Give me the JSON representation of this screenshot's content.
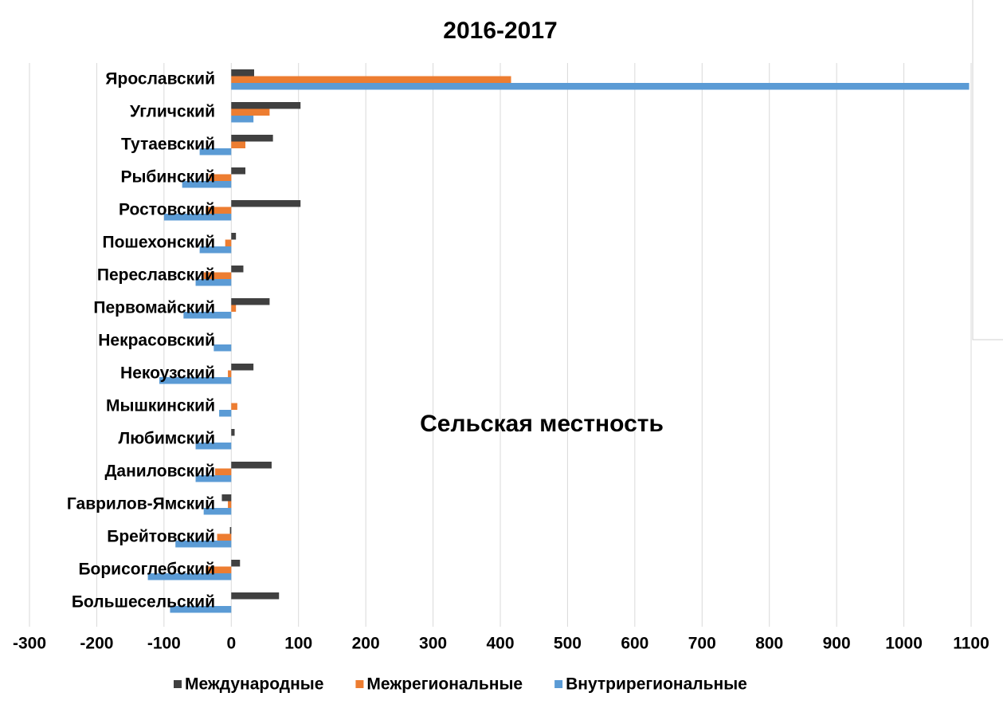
{
  "chart_data": {
    "type": "barh",
    "title": "2016-2017",
    "annotation": "Сельская местность",
    "categories": [
      "Ярославский",
      "Угличский",
      "Тутаевский",
      "Рыбинский",
      "Ростовский",
      "Пошехонский",
      "Переславский",
      "Первомайский",
      "Некрасовский",
      "Некоузский",
      "Мышкинский",
      "Любимский",
      "Даниловский",
      "Гаврилов-Ямский",
      "Брейтовский",
      "Борисоглебский",
      "Большесельский"
    ],
    "series": [
      {
        "name": "Международные",
        "color": "#404040",
        "values": [
          34,
          103,
          62,
          21,
          103,
          7,
          18,
          57,
          0,
          33,
          0,
          5,
          60,
          -14,
          -2,
          13,
          71
        ]
      },
      {
        "name": "Межрегиональные",
        "color": "#ed7d31",
        "values": [
          416,
          57,
          21,
          -33,
          -38,
          -9,
          -41,
          7,
          0,
          -5,
          9,
          0,
          -24,
          -5,
          -21,
          -38,
          0
        ]
      },
      {
        "name": "Внутрирегиональные",
        "color": "#5b9bd5",
        "values": [
          1097,
          33,
          -47,
          -73,
          -100,
          -47,
          -53,
          -71,
          -26,
          -107,
          -18,
          -53,
          -53,
          -41,
          -83,
          -124,
          -91
        ]
      }
    ],
    "xlim": [
      -300,
      1100
    ],
    "xticks": [
      -300,
      -200,
      -100,
      0,
      100,
      200,
      300,
      400,
      500,
      600,
      700,
      800,
      900,
      1000,
      1100
    ],
    "grid": true,
    "legend": "bottom"
  }
}
